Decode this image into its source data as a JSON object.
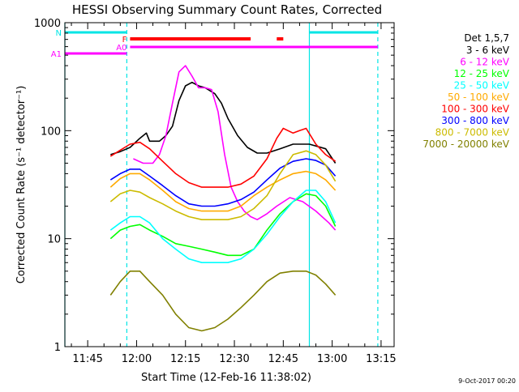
{
  "chart_data": {
    "type": "line",
    "title": "HESSI Observing Summary Count Rates, Corrected",
    "xlabel": "Start Time (12-Feb-16 11:38:02)",
    "ylabel": "Corrected Count Rate (s⁻¹ detector⁻¹)",
    "yscale": "log",
    "ylim": [
      1,
      1000
    ],
    "xlim": [
      "11:38",
      "13:19"
    ],
    "x_ticks": [
      "11:45",
      "12:00",
      "12:15",
      "12:30",
      "12:45",
      "13:00",
      "13:15"
    ],
    "y_ticks": [
      "1",
      "10",
      "100",
      "1000"
    ],
    "legend_title": "Det 1,5,7",
    "legend_placement": "right",
    "footer_date": "9-Oct-2017 00:20",
    "series": [
      {
        "name": "3 - 6 keV",
        "color": "#000000",
        "points": [
          [
            "11:52",
            60
          ],
          [
            "11:55",
            64
          ],
          [
            "11:58",
            70
          ],
          [
            "12:01",
            85
          ],
          [
            "12:03",
            95
          ],
          [
            "12:04",
            80
          ],
          [
            "12:07",
            80
          ],
          [
            "12:09",
            90
          ],
          [
            "12:11",
            110
          ],
          [
            "12:13",
            190
          ],
          [
            "12:15",
            260
          ],
          [
            "12:17",
            280
          ],
          [
            "12:19",
            260
          ],
          [
            "12:21",
            250
          ],
          [
            "12:24",
            220
          ],
          [
            "12:26",
            180
          ],
          [
            "12:28",
            130
          ],
          [
            "12:31",
            90
          ],
          [
            "12:34",
            70
          ],
          [
            "12:37",
            62
          ],
          [
            "12:40",
            62
          ],
          [
            "12:44",
            68
          ],
          [
            "12:48",
            75
          ],
          [
            "12:53",
            75
          ],
          [
            "12:58",
            68
          ],
          [
            "13:01",
            50
          ]
        ]
      },
      {
        "name": "6 - 12 keV",
        "color": "#ff00ff",
        "points": [
          [
            "11:59",
            55
          ],
          [
            "12:02",
            50
          ],
          [
            "12:05",
            50
          ],
          [
            "12:07",
            60
          ],
          [
            "12:09",
            90
          ],
          [
            "12:11",
            180
          ],
          [
            "12:13",
            350
          ],
          [
            "12:15",
            400
          ],
          [
            "12:17",
            320
          ],
          [
            "12:19",
            250
          ],
          [
            "12:21",
            250
          ],
          [
            "12:23",
            240
          ],
          [
            "12:25",
            150
          ],
          [
            "12:27",
            60
          ],
          [
            "12:29",
            30
          ],
          [
            "12:31",
            22
          ],
          [
            "12:33",
            18
          ],
          [
            "12:35",
            16
          ],
          [
            "12:37",
            15
          ],
          [
            "12:40",
            17
          ],
          [
            "12:43",
            20
          ],
          [
            "12:47",
            24
          ],
          [
            "12:51",
            22
          ],
          [
            "12:55",
            18
          ],
          [
            "12:59",
            14
          ],
          [
            "13:01",
            12
          ]
        ]
      },
      {
        "name": "12 - 25 keV",
        "color": "#00ff00",
        "points": [
          [
            "11:52",
            10
          ],
          [
            "11:55",
            12
          ],
          [
            "11:58",
            13
          ],
          [
            "12:01",
            13.5
          ],
          [
            "12:04",
            12
          ],
          [
            "12:08",
            10.5
          ],
          [
            "12:12",
            9
          ],
          [
            "12:16",
            8.5
          ],
          [
            "12:20",
            8
          ],
          [
            "12:24",
            7.5
          ],
          [
            "12:28",
            7
          ],
          [
            "12:32",
            7
          ],
          [
            "12:36",
            8
          ],
          [
            "12:40",
            12
          ],
          [
            "12:44",
            17
          ],
          [
            "12:48",
            22
          ],
          [
            "12:52",
            26
          ],
          [
            "12:55",
            25
          ],
          [
            "12:58",
            20
          ],
          [
            "13:01",
            13
          ]
        ]
      },
      {
        "name": "25 - 50 keV",
        "color": "#00ffff",
        "points": [
          [
            "11:52",
            12
          ],
          [
            "11:55",
            14
          ],
          [
            "11:58",
            16
          ],
          [
            "12:01",
            16
          ],
          [
            "12:04",
            14
          ],
          [
            "12:08",
            10
          ],
          [
            "12:12",
            8
          ],
          [
            "12:16",
            6.5
          ],
          [
            "12:20",
            6
          ],
          [
            "12:24",
            6
          ],
          [
            "12:28",
            6
          ],
          [
            "12:32",
            6.5
          ],
          [
            "12:36",
            8
          ],
          [
            "12:40",
            11
          ],
          [
            "12:44",
            16
          ],
          [
            "12:48",
            22
          ],
          [
            "12:52",
            28
          ],
          [
            "12:55",
            28
          ],
          [
            "12:58",
            22
          ],
          [
            "13:01",
            14
          ]
        ]
      },
      {
        "name": "50 - 100 keV",
        "color": "#ffaa00",
        "points": [
          [
            "11:52",
            30
          ],
          [
            "11:55",
            36
          ],
          [
            "11:58",
            40
          ],
          [
            "12:01",
            40
          ],
          [
            "12:04",
            35
          ],
          [
            "12:08",
            28
          ],
          [
            "12:12",
            22
          ],
          [
            "12:16",
            19
          ],
          [
            "12:20",
            18
          ],
          [
            "12:24",
            18
          ],
          [
            "12:28",
            18
          ],
          [
            "12:32",
            20
          ],
          [
            "12:36",
            25
          ],
          [
            "12:40",
            30
          ],
          [
            "12:44",
            35
          ],
          [
            "12:48",
            40
          ],
          [
            "12:52",
            42
          ],
          [
            "12:55",
            40
          ],
          [
            "12:58",
            35
          ],
          [
            "13:01",
            28
          ]
        ]
      },
      {
        "name": "100 - 300 keV",
        "color": "#ff0000",
        "points": [
          [
            "11:52",
            58
          ],
          [
            "11:55",
            66
          ],
          [
            "11:58",
            75
          ],
          [
            "12:01",
            78
          ],
          [
            "12:04",
            68
          ],
          [
            "12:08",
            52
          ],
          [
            "12:12",
            40
          ],
          [
            "12:16",
            33
          ],
          [
            "12:20",
            30
          ],
          [
            "12:24",
            30
          ],
          [
            "12:28",
            30
          ],
          [
            "12:32",
            32
          ],
          [
            "12:36",
            38
          ],
          [
            "12:40",
            55
          ],
          [
            "12:43",
            85
          ],
          [
            "12:45",
            105
          ],
          [
            "12:48",
            95
          ],
          [
            "12:50",
            100
          ],
          [
            "12:52",
            105
          ],
          [
            "12:55",
            75
          ],
          [
            "12:58",
            60
          ],
          [
            "13:01",
            52
          ]
        ]
      },
      {
        "name": "300 - 800 keV",
        "color": "#0000ff",
        "points": [
          [
            "11:52",
            35
          ],
          [
            "11:55",
            40
          ],
          [
            "11:58",
            44
          ],
          [
            "12:01",
            44
          ],
          [
            "12:04",
            38
          ],
          [
            "12:08",
            31
          ],
          [
            "12:12",
            25
          ],
          [
            "12:16",
            21
          ],
          [
            "12:20",
            20
          ],
          [
            "12:24",
            20
          ],
          [
            "12:28",
            21
          ],
          [
            "12:32",
            23
          ],
          [
            "12:36",
            27
          ],
          [
            "12:40",
            35
          ],
          [
            "12:44",
            45
          ],
          [
            "12:48",
            52
          ],
          [
            "12:52",
            55
          ],
          [
            "12:55",
            53
          ],
          [
            "12:58",
            48
          ],
          [
            "13:01",
            38
          ]
        ]
      },
      {
        "name": "800 - 7000 keV",
        "color": "#ccbb00",
        "points": [
          [
            "11:52",
            22
          ],
          [
            "11:55",
            26
          ],
          [
            "11:58",
            28
          ],
          [
            "12:01",
            27
          ],
          [
            "12:04",
            24
          ],
          [
            "12:08",
            21
          ],
          [
            "12:12",
            18
          ],
          [
            "12:16",
            16
          ],
          [
            "12:20",
            15
          ],
          [
            "12:24",
            15
          ],
          [
            "12:28",
            15
          ],
          [
            "12:32",
            16
          ],
          [
            "12:36",
            19
          ],
          [
            "12:40",
            25
          ],
          [
            "12:44",
            40
          ],
          [
            "12:48",
            60
          ],
          [
            "12:52",
            65
          ],
          [
            "12:55",
            60
          ],
          [
            "12:58",
            48
          ],
          [
            "13:01",
            34
          ]
        ]
      },
      {
        "name": "7000 - 20000 keV",
        "color": "#808000",
        "points": [
          [
            "11:52",
            3
          ],
          [
            "11:55",
            4
          ],
          [
            "11:58",
            5
          ],
          [
            "12:01",
            5
          ],
          [
            "12:04",
            4
          ],
          [
            "12:08",
            3
          ],
          [
            "12:12",
            2
          ],
          [
            "12:16",
            1.5
          ],
          [
            "12:20",
            1.4
          ],
          [
            "12:24",
            1.5
          ],
          [
            "12:28",
            1.8
          ],
          [
            "12:32",
            2.3
          ],
          [
            "12:36",
            3
          ],
          [
            "12:40",
            4
          ],
          [
            "12:44",
            4.8
          ],
          [
            "12:48",
            5
          ],
          [
            "12:52",
            5
          ],
          [
            "12:55",
            4.6
          ],
          [
            "12:58",
            3.8
          ],
          [
            "13:01",
            3
          ]
        ]
      }
    ],
    "vlines": [
      {
        "time": "11:38",
        "style": "solid",
        "color": "#00e5e5"
      },
      {
        "time": "11:57",
        "style": "dashed",
        "color": "#00e5e5"
      },
      {
        "time": "12:53",
        "style": "solid",
        "color": "#00e5e5"
      },
      {
        "time": "13:14",
        "style": "dashed",
        "color": "#00e5e5"
      }
    ],
    "flag_bars": [
      {
        "label": "N",
        "color": "#00e5e5",
        "segments": [
          [
            "11:38",
            "11:57"
          ],
          [
            "12:53",
            "13:14"
          ]
        ]
      },
      {
        "label": "F",
        "color": "#ff0000",
        "segments": [
          [
            "11:58",
            "12:35"
          ],
          [
            "12:43",
            "12:45"
          ]
        ]
      },
      {
        "label": "A0",
        "color": "#ff00ff",
        "segments": [
          [
            "11:58",
            "13:14"
          ]
        ]
      },
      {
        "label": "A1",
        "color": "#ff00ff",
        "segments": [
          [
            "11:38",
            "11:57"
          ]
        ]
      }
    ]
  }
}
